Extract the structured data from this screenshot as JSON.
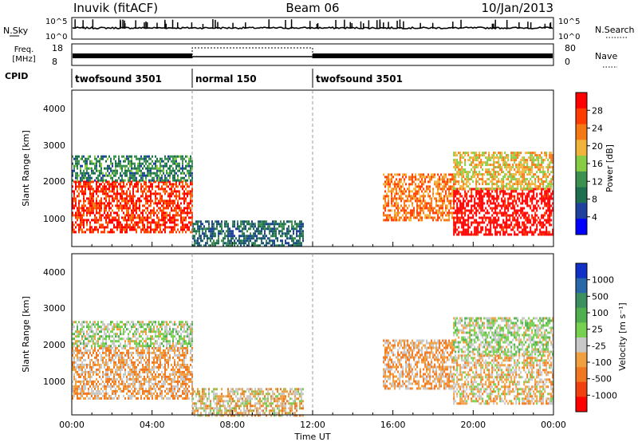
{
  "header": {
    "station": "Inuvik (fitACF)",
    "beam": "Beam 06",
    "date": "10/Jan/2013"
  },
  "noise_panel": {
    "left_label": "N.Sky",
    "right_label": "N.Search",
    "left_ticks": [
      "10^5",
      "10^0"
    ],
    "right_ticks": [
      "10^5",
      "10^0"
    ]
  },
  "freq_panel": {
    "left_label_line1": "Freq.",
    "left_label_line2": "[MHz]",
    "right_label": "Nave",
    "left_ticks": [
      "18",
      "8"
    ],
    "right_ticks": [
      "80",
      "0"
    ]
  },
  "cpid": {
    "label": "CPID",
    "segments": [
      {
        "name": "twofsound 3501",
        "start_hour": 0,
        "end_hour": 6
      },
      {
        "name": "normal 150",
        "start_hour": 6,
        "end_hour": 12
      },
      {
        "name": "twofsound 3501",
        "start_hour": 12,
        "end_hour": 24
      }
    ]
  },
  "axes": {
    "ylabel": "Slant Range [km]",
    "xlabel": "Time UT",
    "yticks": [
      "1000",
      "2000",
      "3000",
      "4000"
    ],
    "xticks": [
      "00:00",
      "04:00",
      "08:00",
      "12:00",
      "16:00",
      "20:00",
      "00:00"
    ]
  },
  "power_colorbar": {
    "label": "Power [dB]",
    "ticks": [
      "28",
      "24",
      "20",
      "16",
      "12",
      "8",
      "4"
    ],
    "colors": [
      "#ff0000",
      "#ff3c00",
      "#f47814",
      "#f0b43c",
      "#88cc44",
      "#3c9050",
      "#1e6e50",
      "#2040a0",
      "#0000ff"
    ]
  },
  "velocity_colorbar": {
    "label": "Velocity [m s⁻¹]",
    "ticks": [
      "1000",
      "500",
      "100",
      "25",
      "-25",
      "-100",
      "-500",
      "-1000"
    ],
    "colors": [
      "#1030c8",
      "#2868a8",
      "#3c9060",
      "#50b050",
      "#78d050",
      "#c8c8c8",
      "#f0a040",
      "#f07820",
      "#f04010",
      "#ff0000"
    ]
  },
  "chart_data": {
    "type": "heatmap",
    "title": "Inuvik (fitACF)",
    "xlabel": "Time UT",
    "ylabel": "Slant Range [km]",
    "xlim": [
      0,
      24
    ],
    "ylim": [
      180,
      4500
    ],
    "panels": [
      {
        "name": "Power",
        "units": "dB",
        "range": [
          0,
          30
        ],
        "regions": [
          {
            "t0": 0,
            "t1": 6,
            "r0": 600,
            "r1": 2000,
            "value": 26
          },
          {
            "t0": 0,
            "t1": 6,
            "r0": 2000,
            "r1": 2700,
            "value": 10
          },
          {
            "t0": 6,
            "t1": 11.5,
            "r0": 180,
            "r1": 900,
            "value": 8
          },
          {
            "t0": 15.5,
            "t1": 19,
            "r0": 900,
            "r1": 2200,
            "value": 22
          },
          {
            "t0": 19,
            "t1": 24,
            "r0": 500,
            "r1": 1800,
            "value": 30
          },
          {
            "t0": 19,
            "t1": 24,
            "r0": 1800,
            "r1": 2800,
            "value": 18
          }
        ]
      },
      {
        "name": "Velocity",
        "units": "m/s",
        "range": [
          -1000,
          1000
        ],
        "regions": [
          {
            "t0": 0,
            "t1": 6,
            "r0": 600,
            "r1": 2000,
            "value": -300
          },
          {
            "t0": 0,
            "t1": 6,
            "r0": 2000,
            "r1": 2700,
            "value": 0
          },
          {
            "t0": 6,
            "t1": 11.5,
            "r0": 180,
            "r1": 900,
            "value": -200
          },
          {
            "t0": 15.5,
            "t1": 19,
            "r0": 900,
            "r1": 2200,
            "value": -300
          },
          {
            "t0": 19,
            "t1": 24,
            "r0": 500,
            "r1": 1800,
            "value": -200
          },
          {
            "t0": 19,
            "t1": 24,
            "r0": 1800,
            "r1": 2800,
            "value": 0
          }
        ]
      }
    ]
  }
}
